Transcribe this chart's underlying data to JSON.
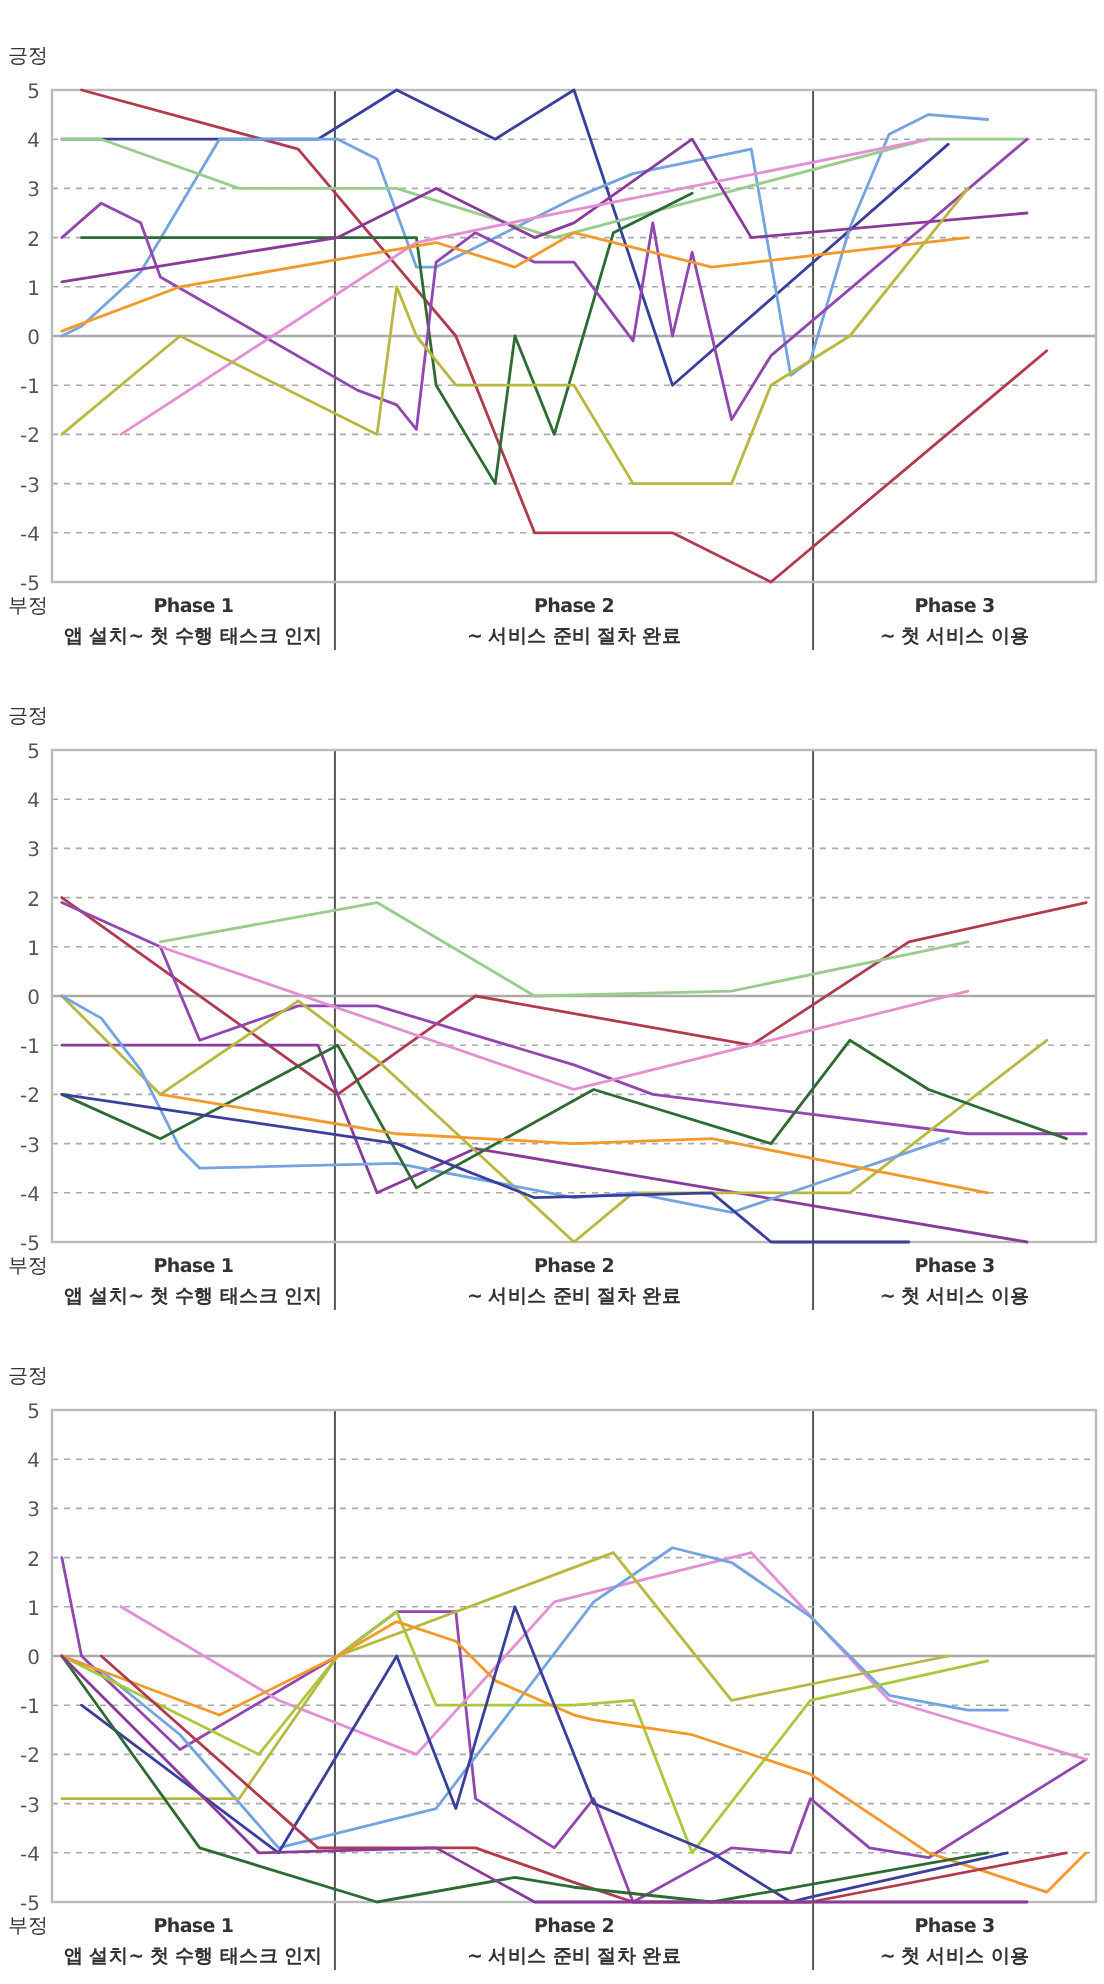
{
  "chart_data": [
    {
      "type": "line",
      "categories": [
        null,
        null,
        null,
        null,
        null,
        null,
        null,
        null,
        null,
        null,
        null,
        null,
        null,
        null,
        null,
        null,
        null,
        null,
        null,
        null,
        null,
        null,
        null,
        null,
        null,
        null,
        null,
        null,
        null,
        null,
        null,
        null,
        null,
        null,
        null,
        null,
        null,
        null,
        null,
        null,
        null,
        null,
        null,
        null,
        null,
        null,
        null,
        null,
        null,
        null,
        null,
        null,
        null
      ],
      "ylim": [
        -5,
        5
      ],
      "yticks": [
        -5,
        -4,
        -3,
        -2,
        -1,
        0,
        1,
        2,
        3,
        4,
        5
      ],
      "tick_labels": "y",
      "grid": "y",
      "ref_lines": [
        {
          "axis": "y",
          "value": 0,
          "color": "#aaaaaa"
        }
      ],
      "annotations": [
        "긍정",
        "부정",
        "Phase 1\n앱 설치~ 첫 수행 태스크 인지",
        "Phase 2\n~ 서비스 준비 절차 완료",
        "Phase 3\n~ 첫 서비스 이용"
      ],
      "series": [
        {
          "color": "#b03a4e",
          "values": [
            null,
            5,
            null,
            null,
            null,
            null,
            null,
            null,
            null,
            null,
            null,
            null,
            3.8,
            null,
            null,
            null,
            null,
            null,
            null,
            null,
            0,
            null,
            null,
            null,
            -4,
            null,
            null,
            null,
            null,
            null,
            null,
            -4,
            null,
            null,
            null,
            null,
            -5,
            null,
            null,
            null,
            null,
            null,
            null,
            null,
            null,
            null,
            null,
            null,
            null,
            null,
            -0.3,
            null,
            null
          ]
        },
        {
          "color": "#3b3f9c",
          "values": [
            4,
            null,
            null,
            null,
            null,
            null,
            null,
            null,
            null,
            null,
            null,
            null,
            null,
            4,
            null,
            null,
            null,
            5,
            null,
            null,
            null,
            null,
            4,
            null,
            null,
            null,
            5,
            null,
            null,
            null,
            null,
            -1,
            null,
            null,
            null,
            null,
            null,
            null,
            null,
            null,
            null,
            null,
            null,
            null,
            null,
            3.9,
            null,
            null,
            null,
            null,
            null,
            null,
            null
          ]
        },
        {
          "color": "#73a3e0",
          "values": [
            0,
            0.2,
            null,
            null,
            1.3,
            null,
            null,
            null,
            4,
            null,
            null,
            null,
            null,
            null,
            4,
            null,
            3.6,
            null,
            1.4,
            1.4,
            null,
            1.8,
            null,
            null,
            null,
            null,
            2.8,
            null,
            null,
            3.3,
            null,
            null,
            null,
            null,
            null,
            3.8,
            null,
            -0.8,
            -0.5,
            null,
            2.2,
            null,
            4.1,
            null,
            4.5,
            null,
            null,
            4.4,
            null,
            null,
            null,
            null,
            null
          ]
        },
        {
          "color": "#98cd8d",
          "values": [
            4,
            null,
            4,
            null,
            null,
            null,
            null,
            null,
            null,
            3,
            null,
            null,
            null,
            null,
            null,
            null,
            null,
            3,
            null,
            null,
            null,
            null,
            null,
            null,
            null,
            2,
            null,
            null,
            null,
            null,
            null,
            null,
            null,
            null,
            null,
            null,
            null,
            null,
            null,
            null,
            null,
            null,
            null,
            null,
            4,
            null,
            null,
            null,
            null,
            4,
            null,
            null,
            null
          ]
        },
        {
          "color": "#2e6b32",
          "values": [
            null,
            2,
            null,
            null,
            null,
            null,
            null,
            null,
            null,
            null,
            null,
            null,
            null,
            null,
            null,
            null,
            null,
            null,
            2,
            -1,
            null,
            null,
            -3,
            0,
            null,
            -2,
            null,
            null,
            2.1,
            null,
            null,
            null,
            2.9,
            null,
            null,
            null,
            null,
            null,
            null,
            null,
            null,
            null,
            null,
            null,
            null,
            null,
            null,
            null,
            null,
            null,
            null,
            null,
            null
          ]
        },
        {
          "color": "#9146b0",
          "values": [
            2,
            null,
            2.7,
            null,
            2.3,
            1.2,
            null,
            null,
            null,
            null,
            null,
            null,
            null,
            null,
            null,
            -1.1,
            null,
            -1.4,
            -1.9,
            1.5,
            null,
            2.1,
            null,
            null,
            1.5,
            null,
            1.5,
            null,
            null,
            -0.1,
            2.3,
            0,
            1.7,
            null,
            -1.7,
            null,
            -0.4,
            null,
            null,
            null,
            null,
            null,
            null,
            null,
            null,
            null,
            null,
            null,
            null,
            4,
            null,
            null,
            null
          ]
        },
        {
          "color": "#8a3a9a",
          "values": [
            1.1,
            null,
            null,
            null,
            null,
            null,
            null,
            null,
            null,
            null,
            null,
            null,
            null,
            null,
            2,
            null,
            null,
            null,
            null,
            3,
            null,
            null,
            null,
            null,
            2,
            null,
            2.3,
            null,
            null,
            null,
            null,
            null,
            4,
            null,
            null,
            2,
            null,
            null,
            null,
            null,
            null,
            null,
            null,
            null,
            null,
            null,
            null,
            null,
            null,
            2.5,
            null,
            null,
            null
          ]
        },
        {
          "color": "#e48fd4",
          "values": [
            null,
            null,
            null,
            -2,
            null,
            null,
            null,
            null,
            null,
            null,
            null,
            null,
            null,
            null,
            null,
            null,
            null,
            null,
            1.9,
            null,
            null,
            null,
            null,
            null,
            2.4,
            null,
            null,
            null,
            null,
            null,
            null,
            null,
            null,
            null,
            null,
            null,
            null,
            null,
            null,
            null,
            null,
            null,
            null,
            null,
            4,
            null,
            null,
            null,
            null,
            null,
            null,
            null,
            null
          ]
        },
        {
          "color": "#f2992a",
          "values": [
            0.1,
            null,
            null,
            null,
            null,
            null,
            1,
            null,
            null,
            null,
            null,
            null,
            null,
            null,
            null,
            null,
            null,
            null,
            null,
            1.9,
            null,
            null,
            null,
            1.4,
            null,
            null,
            2.1,
            null,
            null,
            null,
            null,
            null,
            null,
            1.4,
            null,
            null,
            null,
            null,
            null,
            null,
            null,
            null,
            null,
            null,
            null,
            null,
            2,
            null,
            null,
            null,
            null,
            null,
            null
          ]
        },
        {
          "color": "#b8b840",
          "values": [
            -2,
            null,
            null,
            null,
            null,
            null,
            0,
            null,
            null,
            null,
            null,
            null,
            null,
            null,
            null,
            null,
            -2,
            1,
            0,
            null,
            -1,
            null,
            null,
            null,
            null,
            null,
            -1,
            null,
            null,
            -3,
            null,
            null,
            null,
            null,
            -3,
            null,
            -1,
            null,
            null,
            null,
            0,
            null,
            null,
            null,
            null,
            null,
            3,
            null,
            null,
            null,
            null,
            null,
            null
          ]
        }
      ]
    },
    {
      "type": "line",
      "categories": [
        null,
        null,
        null,
        null,
        null,
        null,
        null,
        null,
        null,
        null,
        null,
        null,
        null,
        null,
        null,
        null,
        null,
        null,
        null,
        null,
        null,
        null,
        null,
        null,
        null,
        null,
        null,
        null,
        null,
        null,
        null,
        null,
        null,
        null,
        null,
        null,
        null,
        null,
        null,
        null,
        null,
        null,
        null,
        null,
        null,
        null,
        null,
        null,
        null,
        null,
        null,
        null,
        null
      ],
      "ylim": [
        -5,
        5
      ],
      "yticks": [
        -5,
        -4,
        -3,
        -2,
        -1,
        0,
        1,
        2,
        3,
        4,
        5
      ],
      "tick_labels": "y",
      "grid": "y",
      "ref_lines": [
        {
          "axis": "y",
          "value": 0,
          "color": "#aaaaaa"
        }
      ],
      "annotations": [
        "긍정",
        "부정",
        "Phase 1\n앱 설치~ 첫 수행 태스크 인지",
        "Phase 2\n~ 서비스 준비 절차 완료",
        "Phase 3\n~ 첫 서비스 이용"
      ],
      "series": [
        {
          "color": "#b03a4e",
          "values": [
            2,
            null,
            null,
            null,
            null,
            null,
            null,
            null,
            null,
            null,
            null,
            null,
            null,
            null,
            -2,
            null,
            null,
            null,
            null,
            null,
            null,
            0,
            null,
            null,
            null,
            null,
            null,
            null,
            null,
            null,
            null,
            null,
            null,
            null,
            null,
            -1,
            null,
            null,
            null,
            null,
            null,
            null,
            null,
            1.1,
            null,
            null,
            null,
            null,
            null,
            null,
            null,
            null,
            1.9
          ]
        },
        {
          "color": "#98cd8d",
          "values": [
            null,
            null,
            null,
            null,
            null,
            1.1,
            null,
            null,
            null,
            null,
            null,
            null,
            null,
            null,
            null,
            null,
            1.9,
            null,
            null,
            null,
            null,
            null,
            null,
            null,
            0,
            null,
            null,
            null,
            null,
            null,
            null,
            null,
            null,
            null,
            0.1,
            null,
            null,
            null,
            null,
            null,
            null,
            null,
            null,
            null,
            null,
            null,
            1.1,
            null,
            null,
            null,
            null,
            null,
            null
          ]
        },
        {
          "color": "#9146b0",
          "values": [
            1.9,
            null,
            null,
            null,
            null,
            1,
            null,
            -0.9,
            null,
            null,
            null,
            null,
            -0.2,
            null,
            null,
            null,
            -0.2,
            null,
            null,
            null,
            null,
            null,
            null,
            null,
            null,
            null,
            -1.4,
            null,
            null,
            null,
            -2,
            null,
            null,
            null,
            null,
            null,
            null,
            null,
            null,
            null,
            null,
            null,
            null,
            null,
            null,
            null,
            -2.8,
            null,
            null,
            null,
            null,
            null,
            -2.8
          ]
        },
        {
          "color": "#e48fd4",
          "values": [
            null,
            null,
            null,
            null,
            null,
            1,
            null,
            null,
            null,
            null,
            null,
            null,
            null,
            null,
            null,
            null,
            null,
            null,
            null,
            null,
            null,
            null,
            null,
            null,
            null,
            null,
            -1.9,
            null,
            null,
            null,
            null,
            null,
            null,
            null,
            null,
            null,
            null,
            null,
            null,
            null,
            null,
            null,
            null,
            null,
            null,
            null,
            0.1,
            null,
            null,
            null,
            null,
            null,
            null
          ]
        },
        {
          "color": "#8a3a9a",
          "values": [
            -1,
            null,
            null,
            null,
            null,
            null,
            null,
            null,
            null,
            null,
            null,
            null,
            null,
            -1,
            null,
            null,
            -4,
            null,
            null,
            null,
            null,
            -3.1,
            null,
            null,
            null,
            null,
            null,
            null,
            null,
            null,
            null,
            null,
            null,
            null,
            null,
            null,
            null,
            null,
            null,
            null,
            null,
            null,
            null,
            null,
            null,
            null,
            null,
            null,
            null,
            -5,
            null,
            null,
            null
          ]
        },
        {
          "color": "#b8b840",
          "values": [
            0,
            null,
            null,
            null,
            null,
            -2,
            null,
            null,
            null,
            null,
            null,
            null,
            -0.1,
            null,
            null,
            null,
            -1.3,
            null,
            null,
            null,
            null,
            null,
            null,
            null,
            null,
            null,
            -5,
            null,
            null,
            -4,
            null,
            null,
            null,
            null,
            null,
            null,
            null,
            null,
            null,
            null,
            -4,
            null,
            null,
            null,
            null,
            null,
            null,
            null,
            null,
            null,
            -0.9,
            null,
            null
          ]
        },
        {
          "color": "#73a3e0",
          "values": [
            0,
            null,
            -0.45,
            null,
            -1.5,
            null,
            -3.1,
            -3.5,
            null,
            null,
            null,
            null,
            null,
            null,
            null,
            null,
            null,
            -3.4,
            null,
            null,
            null,
            null,
            null,
            null,
            null,
            null,
            -4.1,
            null,
            null,
            -4,
            null,
            null,
            null,
            null,
            -4.4,
            null,
            null,
            null,
            null,
            null,
            null,
            null,
            null,
            null,
            null,
            -2.9,
            null,
            null,
            null,
            null,
            null,
            null,
            null
          ]
        },
        {
          "color": "#2e6b32",
          "values": [
            -2,
            null,
            null,
            null,
            null,
            -2.9,
            null,
            null,
            null,
            null,
            null,
            null,
            null,
            null,
            -1,
            null,
            null,
            null,
            -3.9,
            null,
            null,
            null,
            null,
            null,
            null,
            null,
            null,
            -1.9,
            null,
            null,
            null,
            null,
            null,
            null,
            null,
            null,
            -3,
            null,
            null,
            null,
            -0.9,
            null,
            null,
            null,
            -1.9,
            null,
            null,
            null,
            null,
            null,
            null,
            -2.9,
            null
          ]
        },
        {
          "color": "#f2992a",
          "values": [
            null,
            null,
            null,
            null,
            null,
            -2,
            null,
            null,
            null,
            null,
            null,
            null,
            null,
            null,
            null,
            null,
            null,
            -2.8,
            null,
            null,
            null,
            null,
            null,
            null,
            null,
            null,
            -3,
            null,
            null,
            null,
            null,
            null,
            null,
            -2.9,
            null,
            null,
            null,
            null,
            null,
            null,
            null,
            null,
            null,
            null,
            null,
            null,
            null,
            -4,
            null,
            null,
            null,
            null,
            null
          ]
        },
        {
          "color": "#3b3f9c",
          "values": [
            -2,
            null,
            null,
            null,
            null,
            null,
            null,
            null,
            null,
            null,
            null,
            null,
            null,
            null,
            null,
            null,
            null,
            -3,
            null,
            null,
            null,
            null,
            null,
            null,
            -4.1,
            null,
            null,
            null,
            null,
            null,
            null,
            null,
            null,
            -4,
            null,
            null,
            -5,
            null,
            null,
            null,
            null,
            null,
            null,
            -5,
            null,
            null,
            null,
            null,
            null,
            null,
            null,
            null,
            null
          ]
        }
      ]
    },
    {
      "type": "line",
      "categories": [
        null,
        null,
        null,
        null,
        null,
        null,
        null,
        null,
        null,
        null,
        null,
        null,
        null,
        null,
        null,
        null,
        null,
        null,
        null,
        null,
        null,
        null,
        null,
        null,
        null,
        null,
        null,
        null,
        null,
        null,
        null,
        null,
        null,
        null,
        null,
        null,
        null,
        null,
        null,
        null,
        null,
        null,
        null,
        null,
        null,
        null,
        null,
        null,
        null,
        null,
        null,
        null,
        null
      ],
      "ylim": [
        -5,
        5
      ],
      "yticks": [
        -5,
        -4,
        -3,
        -2,
        -1,
        0,
        1,
        2,
        3,
        4,
        5
      ],
      "tick_labels": "y",
      "grid": "y",
      "ref_lines": [
        {
          "axis": "y",
          "value": 0,
          "color": "#aaaaaa"
        }
      ],
      "annotations": [
        "긍정",
        "부정",
        "Phase 1\n앱 설치~ 첫 수행 태스크 인지",
        "Phase 2\n~ 서비스 준비 절차 완료",
        "Phase 3\n~ 첫 서비스 이용"
      ],
      "series": [
        {
          "color": "#9146b0",
          "values": [
            2,
            0,
            null,
            null,
            null,
            null,
            -1.9,
            null,
            null,
            null,
            null,
            null,
            null,
            null,
            0,
            0.3,
            null,
            0.9,
            null,
            null,
            0.9,
            -2.9,
            null,
            null,
            null,
            -3.9,
            null,
            -2.9,
            null,
            -5,
            null,
            null,
            null,
            null,
            -3.9,
            null,
            null,
            -4,
            -2.9,
            null,
            null,
            -3.9,
            null,
            null,
            -4.1,
            null,
            null,
            null,
            null,
            null,
            null,
            null,
            -2.1
          ]
        },
        {
          "color": "#e48fd4",
          "values": [
            null,
            null,
            null,
            1,
            null,
            null,
            null,
            null,
            null,
            null,
            null,
            -0.9,
            null,
            null,
            null,
            null,
            null,
            null,
            -2,
            null,
            null,
            null,
            null,
            null,
            null,
            1.1,
            null,
            null,
            null,
            null,
            null,
            null,
            null,
            null,
            null,
            2.1,
            null,
            null,
            null,
            null,
            null,
            null,
            -0.9,
            null,
            null,
            null,
            null,
            null,
            null,
            null,
            null,
            null,
            -2.1
          ]
        },
        {
          "color": "#73a3e0",
          "values": [
            0,
            null,
            -0.3,
            null,
            null,
            null,
            -1.6,
            null,
            null,
            null,
            null,
            -3.9,
            null,
            null,
            null,
            null,
            null,
            null,
            null,
            -3.1,
            null,
            null,
            null,
            null,
            null,
            null,
            null,
            1.1,
            null,
            null,
            null,
            2.2,
            null,
            null,
            1.9,
            null,
            null,
            null,
            0.8,
            null,
            null,
            null,
            -0.8,
            null,
            null,
            null,
            -1.1,
            null,
            -1.1,
            null,
            null,
            null,
            null
          ]
        },
        {
          "color": "#a9c83c",
          "values": [
            0,
            null,
            null,
            null,
            null,
            null,
            null,
            null,
            null,
            null,
            -2,
            null,
            null,
            null,
            0,
            null,
            null,
            0.9,
            null,
            -1,
            null,
            null,
            null,
            null,
            null,
            null,
            -1,
            null,
            null,
            -0.9,
            null,
            null,
            -4,
            null,
            null,
            null,
            null,
            null,
            -0.9,
            null,
            null,
            null,
            null,
            null,
            null,
            null,
            null,
            -0.1,
            null,
            null,
            null,
            null,
            null
          ]
        },
        {
          "color": "#b8b840",
          "values": [
            -2.9,
            null,
            null,
            null,
            null,
            null,
            null,
            null,
            null,
            -2.9,
            null,
            null,
            null,
            null,
            0,
            null,
            null,
            null,
            null,
            null,
            null,
            null,
            null,
            null,
            null,
            null,
            null,
            null,
            2.1,
            null,
            null,
            null,
            null,
            null,
            -0.9,
            null,
            null,
            null,
            null,
            null,
            null,
            null,
            null,
            null,
            null,
            0,
            null,
            null,
            null,
            null,
            null,
            null,
            null
          ]
        },
        {
          "color": "#f2992a",
          "values": [
            0,
            null,
            null,
            null,
            null,
            null,
            null,
            null,
            -1.2,
            null,
            null,
            null,
            null,
            null,
            0,
            null,
            null,
            0.7,
            null,
            null,
            0.3,
            null,
            -0.5,
            null,
            null,
            null,
            -1.2,
            -1.3,
            null,
            null,
            null,
            null,
            -1.6,
            null,
            null,
            null,
            null,
            null,
            -2.4,
            null,
            null,
            null,
            null,
            null,
            -4,
            null,
            null,
            null,
            null,
            null,
            -4.8,
            null,
            -4
          ]
        },
        {
          "color": "#3b3f9c",
          "values": [
            null,
            -1,
            null,
            null,
            null,
            null,
            null,
            null,
            null,
            null,
            null,
            -4,
            null,
            null,
            null,
            null,
            null,
            0,
            null,
            null,
            -3.1,
            null,
            null,
            1,
            null,
            null,
            null,
            -3,
            null,
            null,
            null,
            null,
            null,
            -4,
            null,
            null,
            null,
            -5,
            -4.9,
            null,
            null,
            null,
            null,
            null,
            null,
            null,
            null,
            null,
            -4,
            null,
            null,
            null,
            null
          ]
        },
        {
          "color": "#b03a4e",
          "values": [
            null,
            null,
            0,
            null,
            null,
            null,
            null,
            null,
            null,
            null,
            null,
            null,
            null,
            -3.9,
            null,
            null,
            null,
            null,
            null,
            null,
            null,
            -3.9,
            null,
            null,
            null,
            null,
            -4.6,
            null,
            null,
            -5,
            null,
            null,
            null,
            null,
            null,
            null,
            null,
            null,
            -5,
            null,
            null,
            null,
            null,
            null,
            null,
            null,
            null,
            null,
            null,
            null,
            null,
            -4,
            null
          ]
        },
        {
          "color": "#2e6b32",
          "values": [
            0,
            null,
            null,
            null,
            null,
            null,
            null,
            -3.9,
            null,
            null,
            null,
            null,
            null,
            null,
            null,
            null,
            -5,
            null,
            null,
            null,
            null,
            null,
            null,
            -4.5,
            null,
            null,
            -4.7,
            null,
            null,
            null,
            null,
            null,
            null,
            -5,
            null,
            null,
            null,
            null,
            null,
            null,
            null,
            null,
            null,
            null,
            null,
            null,
            null,
            -4,
            null,
            null,
            null,
            null,
            null
          ]
        },
        {
          "color": "#8a3a9a",
          "values": [
            0,
            null,
            null,
            null,
            null,
            null,
            null,
            null,
            null,
            null,
            -4,
            null,
            null,
            null,
            null,
            null,
            null,
            null,
            null,
            -3.9,
            null,
            null,
            null,
            null,
            -5,
            null,
            null,
            null,
            null,
            null,
            null,
            null,
            null,
            null,
            null,
            null,
            null,
            null,
            null,
            null,
            null,
            null,
            null,
            null,
            null,
            null,
            null,
            null,
            null,
            -5,
            null,
            null,
            null
          ]
        }
      ]
    }
  ]
}
